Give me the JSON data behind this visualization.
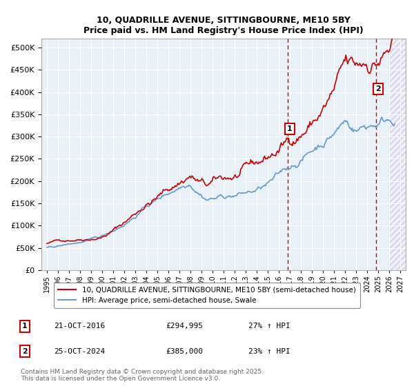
{
  "title_line1": "10, QUADRILLE AVENUE, SITTINGBOURNE, ME10 5BY",
  "title_line2": "Price paid vs. HM Land Registry's House Price Index (HPI)",
  "ylabel_ticks": [
    "£0",
    "£50K",
    "£100K",
    "£150K",
    "£200K",
    "£250K",
    "£300K",
    "£350K",
    "£400K",
    "£450K",
    "£500K"
  ],
  "ytick_values": [
    0,
    50000,
    100000,
    150000,
    200000,
    250000,
    300000,
    350000,
    400000,
    450000,
    500000
  ],
  "ylim": [
    0,
    520000
  ],
  "xlim_start": 1994.5,
  "xlim_end": 2027.5,
  "xticks": [
    1995,
    1996,
    1997,
    1998,
    1999,
    2000,
    2001,
    2002,
    2003,
    2004,
    2005,
    2006,
    2007,
    2008,
    2009,
    2010,
    2011,
    2012,
    2013,
    2014,
    2015,
    2016,
    2017,
    2018,
    2019,
    2020,
    2021,
    2022,
    2023,
    2024,
    2025,
    2026,
    2027
  ],
  "red_color": "#cc0000",
  "blue_color": "#6699cc",
  "bg_color": "#e8f0f8",
  "grid_color": "#ffffff",
  "sale1_x": 2016.8,
  "sale1_y": 294995,
  "sale1_label": "1",
  "sale1_date": "21-OCT-2016",
  "sale1_price": "£294,995",
  "sale1_hpi": "27% ↑ HPI",
  "sale2_x": 2024.8,
  "sale2_y": 385000,
  "sale2_label": "2",
  "sale2_date": "25-OCT-2024",
  "sale2_price": "£385,000",
  "sale2_hpi": "23% ↑ HPI",
  "legend_line1": "10, QUADRILLE AVENUE, SITTINGBOURNE, ME10 5BY (semi-detached house)",
  "legend_line2": "HPI: Average price, semi-detached house, Swale",
  "footnote": "Contains HM Land Registry data © Crown copyright and database right 2025.\nThis data is licensed under the Open Government Licence v3.0."
}
